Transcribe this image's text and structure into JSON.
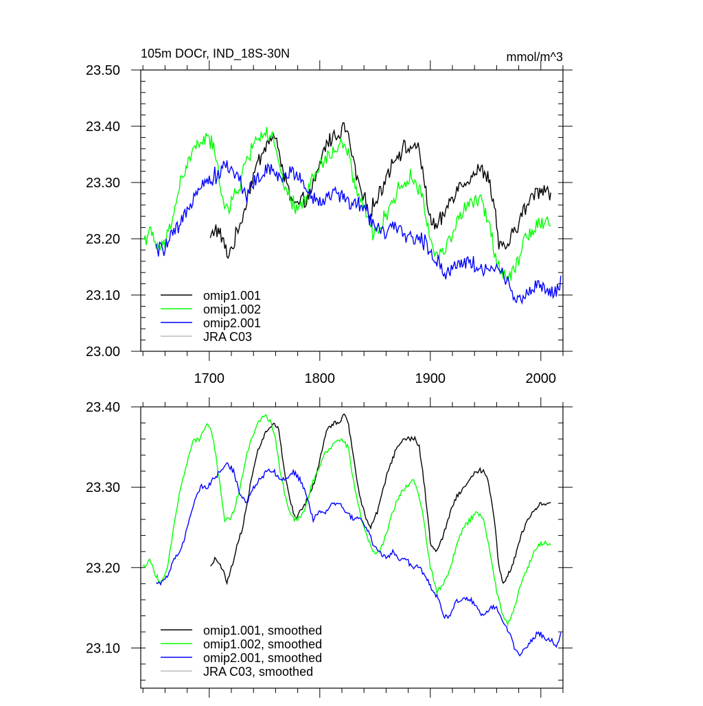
{
  "chart_data": [
    {
      "type": "line",
      "title": "105m DOCr, IND_18S-30N",
      "units": "mmol/m^3",
      "xlabel": "",
      "ylabel": "",
      "xlim": [
        1638,
        2020
      ],
      "ylim": [
        23.0,
        23.5
      ],
      "x_ticks": [
        1700,
        1800,
        1900,
        2000
      ],
      "x_ticks_labeled": true,
      "y_ticks": [
        23.0,
        23.1,
        23.2,
        23.3,
        23.4,
        23.5
      ],
      "y_tick_labels": [
        "23.00",
        "23.10",
        "23.20",
        "23.30",
        "23.40",
        "23.50"
      ],
      "legend_position": "bottom-left",
      "noise": 0.012,
      "series": [
        {
          "name": "omip1.001",
          "color": "#000000",
          "x": [
            1701,
            1705,
            1712,
            1716,
            1722,
            1730,
            1738,
            1745,
            1752,
            1758,
            1763,
            1768,
            1774,
            1778,
            1782,
            1787,
            1791,
            1796,
            1801,
            1806,
            1812,
            1818,
            1822,
            1826,
            1830,
            1836,
            1842,
            1846,
            1852,
            1858,
            1864,
            1870,
            1876,
            1882,
            1886,
            1890,
            1895,
            1900,
            1906,
            1912,
            1918,
            1924,
            1930,
            1936,
            1942,
            1948,
            1952,
            1958,
            1962,
            1966,
            1970,
            1976,
            1982,
            1988,
            1994,
            2000,
            2004,
            2009
          ],
          "y": [
            23.2,
            23.22,
            23.2,
            23.17,
            23.19,
            23.24,
            23.3,
            23.34,
            23.37,
            23.38,
            23.36,
            23.31,
            23.27,
            23.26,
            23.26,
            23.27,
            23.28,
            23.3,
            23.34,
            23.37,
            23.38,
            23.39,
            23.4,
            23.38,
            23.34,
            23.29,
            23.26,
            23.25,
            23.27,
            23.3,
            23.33,
            23.35,
            23.36,
            23.36,
            23.37,
            23.35,
            23.3,
            23.23,
            23.22,
            23.24,
            23.27,
            23.29,
            23.3,
            23.31,
            23.32,
            23.32,
            23.31,
            23.26,
            23.19,
            23.18,
            23.19,
            23.21,
            23.24,
            23.26,
            23.28,
            23.29,
            23.29,
            23.28
          ]
        },
        {
          "name": "omip1.002",
          "color": "#00ff00",
          "x": [
            1640,
            1646,
            1652,
            1656,
            1662,
            1668,
            1674,
            1680,
            1686,
            1692,
            1698,
            1702,
            1706,
            1710,
            1714,
            1718,
            1722,
            1728,
            1734,
            1738,
            1744,
            1750,
            1756,
            1760,
            1764,
            1770,
            1776,
            1780,
            1786,
            1792,
            1798,
            1804,
            1810,
            1816,
            1820,
            1826,
            1830,
            1836,
            1842,
            1848,
            1854,
            1860,
            1866,
            1872,
            1878,
            1884,
            1888,
            1894,
            1900,
            1906,
            1912,
            1918,
            1924,
            1930,
            1936,
            1942,
            1948,
            1954,
            1960,
            1966,
            1970,
            1976,
            1982,
            1988,
            1994,
            2000,
            2006,
            2009
          ],
          "y": [
            23.2,
            23.21,
            23.19,
            23.18,
            23.2,
            23.25,
            23.3,
            23.33,
            23.36,
            23.37,
            23.38,
            23.37,
            23.34,
            23.3,
            23.26,
            23.25,
            23.27,
            23.3,
            23.34,
            23.36,
            23.38,
            23.39,
            23.38,
            23.36,
            23.32,
            23.28,
            23.26,
            23.25,
            23.27,
            23.3,
            23.32,
            23.34,
            23.35,
            23.36,
            23.37,
            23.35,
            23.31,
            23.27,
            23.24,
            23.21,
            23.22,
            23.24,
            23.27,
            23.29,
            23.3,
            23.31,
            23.3,
            23.26,
            23.2,
            23.17,
            23.18,
            23.2,
            23.23,
            23.25,
            23.26,
            23.27,
            23.26,
            23.22,
            23.16,
            23.14,
            23.13,
            23.15,
            23.18,
            23.21,
            23.22,
            23.23,
            23.23,
            23.23
          ]
        },
        {
          "name": "omip2.001",
          "color": "#0000ff",
          "x": [
            1652,
            1656,
            1662,
            1668,
            1674,
            1680,
            1686,
            1692,
            1698,
            1704,
            1710,
            1716,
            1722,
            1728,
            1734,
            1740,
            1746,
            1752,
            1758,
            1764,
            1770,
            1776,
            1782,
            1788,
            1794,
            1800,
            1806,
            1812,
            1818,
            1824,
            1830,
            1836,
            1842,
            1848,
            1854,
            1860,
            1866,
            1872,
            1878,
            1884,
            1890,
            1896,
            1902,
            1908,
            1912,
            1918,
            1924,
            1930,
            1936,
            1942,
            1948,
            1954,
            1960,
            1966,
            1972,
            1976,
            1980,
            1986,
            1992,
            1998,
            2004,
            2010,
            2014,
            2018
          ],
          "y": [
            23.18,
            23.18,
            23.19,
            23.21,
            23.22,
            23.25,
            23.28,
            23.3,
            23.3,
            23.31,
            23.32,
            23.33,
            23.32,
            23.3,
            23.28,
            23.3,
            23.31,
            23.32,
            23.32,
            23.31,
            23.31,
            23.32,
            23.31,
            23.29,
            23.27,
            23.27,
            23.27,
            23.28,
            23.28,
            23.27,
            23.26,
            23.26,
            23.25,
            23.23,
            23.22,
            23.21,
            23.22,
            23.21,
            23.21,
            23.2,
            23.2,
            23.19,
            23.17,
            23.16,
            23.14,
            23.14,
            23.16,
            23.16,
            23.16,
            23.15,
            23.14,
            23.15,
            23.15,
            23.13,
            23.12,
            23.1,
            23.09,
            23.1,
            23.11,
            23.12,
            23.11,
            23.11,
            23.1,
            23.12
          ]
        },
        {
          "name": "JRA C03",
          "color": "#bbbbbb",
          "x": [],
          "y": []
        }
      ]
    },
    {
      "type": "line",
      "title": "",
      "xlabel": "",
      "ylabel": "",
      "xlim": [
        1638,
        2020
      ],
      "ylim": [
        23.05,
        23.4
      ],
      "x_ticks": [
        1700,
        1800,
        1900,
        2000
      ],
      "x_ticks_labeled": false,
      "y_ticks": [
        23.1,
        23.2,
        23.3,
        23.4
      ],
      "y_tick_labels": [
        "23.10",
        "23.20",
        "23.30",
        "23.40"
      ],
      "legend_position": "bottom-left",
      "noise": 0.0025,
      "series": [
        {
          "name": "omip1.001, smoothed",
          "color": "#000000",
          "x": [
            1701,
            1705,
            1712,
            1716,
            1722,
            1730,
            1738,
            1745,
            1752,
            1758,
            1763,
            1768,
            1774,
            1778,
            1782,
            1787,
            1791,
            1796,
            1801,
            1806,
            1812,
            1818,
            1822,
            1826,
            1830,
            1836,
            1842,
            1846,
            1852,
            1858,
            1864,
            1870,
            1876,
            1882,
            1886,
            1890,
            1895,
            1900,
            1906,
            1912,
            1918,
            1924,
            1930,
            1936,
            1942,
            1948,
            1952,
            1958,
            1962,
            1966,
            1970,
            1976,
            1982,
            1988,
            1994,
            2000,
            2004,
            2009
          ],
          "y": [
            23.2,
            23.21,
            23.2,
            23.18,
            23.21,
            23.25,
            23.31,
            23.35,
            23.37,
            23.38,
            23.37,
            23.32,
            23.28,
            23.26,
            23.27,
            23.28,
            23.29,
            23.31,
            23.34,
            23.37,
            23.38,
            23.38,
            23.39,
            23.38,
            23.34,
            23.29,
            23.26,
            23.25,
            23.27,
            23.3,
            23.33,
            23.35,
            23.36,
            23.36,
            23.36,
            23.35,
            23.3,
            23.23,
            23.22,
            23.24,
            23.27,
            23.29,
            23.3,
            23.31,
            23.32,
            23.32,
            23.31,
            23.26,
            23.2,
            23.18,
            23.19,
            23.21,
            23.24,
            23.26,
            23.27,
            23.28,
            23.28,
            23.28
          ]
        },
        {
          "name": "omip1.002, smoothed",
          "color": "#00ff00",
          "x": [
            1640,
            1646,
            1652,
            1656,
            1662,
            1668,
            1674,
            1680,
            1686,
            1692,
            1698,
            1702,
            1706,
            1710,
            1714,
            1718,
            1722,
            1728,
            1734,
            1738,
            1744,
            1750,
            1756,
            1760,
            1764,
            1770,
            1776,
            1780,
            1786,
            1792,
            1798,
            1804,
            1810,
            1816,
            1820,
            1826,
            1830,
            1836,
            1842,
            1848,
            1854,
            1860,
            1866,
            1872,
            1878,
            1884,
            1888,
            1894,
            1900,
            1906,
            1912,
            1918,
            1924,
            1930,
            1936,
            1942,
            1948,
            1954,
            1960,
            1966,
            1970,
            1976,
            1982,
            1988,
            1994,
            2000,
            2006,
            2009
          ],
          "y": [
            23.2,
            23.21,
            23.19,
            23.18,
            23.2,
            23.25,
            23.3,
            23.33,
            23.36,
            23.36,
            23.38,
            23.37,
            23.34,
            23.3,
            23.26,
            23.26,
            23.27,
            23.3,
            23.34,
            23.36,
            23.38,
            23.39,
            23.38,
            23.36,
            23.32,
            23.28,
            23.26,
            23.26,
            23.27,
            23.3,
            23.32,
            23.34,
            23.35,
            23.36,
            23.36,
            23.35,
            23.31,
            23.27,
            23.24,
            23.22,
            23.22,
            23.24,
            23.27,
            23.29,
            23.3,
            23.31,
            23.3,
            23.26,
            23.2,
            23.17,
            23.18,
            23.2,
            23.23,
            23.25,
            23.26,
            23.27,
            23.26,
            23.22,
            23.17,
            23.14,
            23.13,
            23.15,
            23.18,
            23.2,
            23.22,
            23.23,
            23.23,
            23.23
          ]
        },
        {
          "name": "omip2.001, smoothed",
          "color": "#0000ff",
          "x": [
            1652,
            1656,
            1662,
            1668,
            1674,
            1680,
            1686,
            1692,
            1698,
            1704,
            1710,
            1716,
            1722,
            1728,
            1734,
            1740,
            1746,
            1752,
            1758,
            1764,
            1770,
            1776,
            1782,
            1788,
            1794,
            1800,
            1806,
            1812,
            1818,
            1824,
            1830,
            1836,
            1842,
            1848,
            1854,
            1860,
            1866,
            1872,
            1878,
            1884,
            1890,
            1896,
            1902,
            1908,
            1912,
            1918,
            1924,
            1930,
            1936,
            1942,
            1948,
            1954,
            1960,
            1966,
            1972,
            1976,
            1980,
            1986,
            1992,
            1998,
            2004,
            2010,
            2014,
            2018
          ],
          "y": [
            23.18,
            23.18,
            23.19,
            23.21,
            23.22,
            23.25,
            23.28,
            23.3,
            23.3,
            23.31,
            23.32,
            23.33,
            23.32,
            23.29,
            23.28,
            23.3,
            23.31,
            23.32,
            23.32,
            23.31,
            23.31,
            23.32,
            23.31,
            23.29,
            23.26,
            23.27,
            23.27,
            23.28,
            23.28,
            23.27,
            23.26,
            23.26,
            23.25,
            23.23,
            23.22,
            23.21,
            23.22,
            23.21,
            23.21,
            23.2,
            23.2,
            23.19,
            23.17,
            23.16,
            23.14,
            23.14,
            23.16,
            23.16,
            23.16,
            23.15,
            23.14,
            23.15,
            23.15,
            23.13,
            23.12,
            23.1,
            23.09,
            23.1,
            23.11,
            23.12,
            23.11,
            23.11,
            23.1,
            23.12
          ]
        },
        {
          "name": "JRA C03, smoothed",
          "color": "#bbbbbb",
          "x": [],
          "y": []
        }
      ]
    }
  ]
}
